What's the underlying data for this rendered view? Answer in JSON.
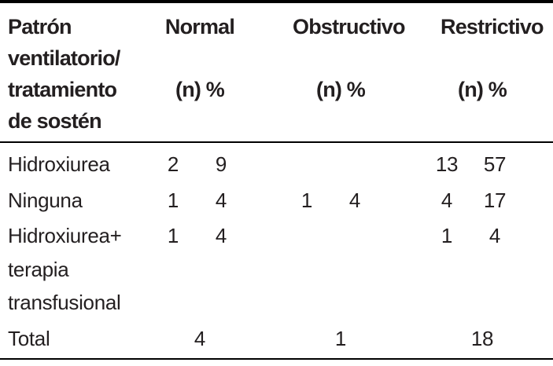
{
  "colors": {
    "text": "#231f20",
    "rule": "#000000",
    "background": "#ffffff"
  },
  "table": {
    "header": {
      "row_label_lines": [
        "Patrón",
        "ventilatorio/",
        "tratamiento",
        "de sostén"
      ],
      "groups": [
        {
          "name": "Normal",
          "sub": "(n) %"
        },
        {
          "name": "Obstructivo",
          "sub": "(n) %"
        },
        {
          "name": "Restrictivo",
          "sub": "(n) %"
        }
      ]
    },
    "rows": [
      {
        "label_lines": [
          "Hidroxiurea"
        ],
        "normal": {
          "n": "2",
          "pct": "9"
        },
        "obstructivo": {
          "n": "",
          "pct": ""
        },
        "restrictivo": {
          "n": "13",
          "pct": "57"
        }
      },
      {
        "label_lines": [
          "Ninguna"
        ],
        "normal": {
          "n": "1",
          "pct": "4"
        },
        "obstructivo": {
          "n": "1",
          "pct": "4"
        },
        "restrictivo": {
          "n": "4",
          "pct": "17"
        }
      },
      {
        "label_lines": [
          "Hidroxiurea+",
          "terapia",
          "transfusional"
        ],
        "normal": {
          "n": "1",
          "pct": "4"
        },
        "obstructivo": {
          "n": "",
          "pct": ""
        },
        "restrictivo": {
          "n": "1",
          "pct": "4"
        }
      }
    ],
    "total_row": {
      "label": "Total",
      "normal": "4",
      "obstructivo": "1",
      "restrictivo": "18"
    }
  },
  "chart_data": {
    "type": "table",
    "title": "Patrón ventilatorio/tratamiento de sostén",
    "columns": [
      "Normal (n)",
      "Normal %",
      "Obstructivo (n)",
      "Obstructivo %",
      "Restrictivo (n)",
      "Restrictivo %"
    ],
    "rows": [
      {
        "label": "Hidroxiurea",
        "values": [
          2,
          9,
          null,
          null,
          13,
          57
        ]
      },
      {
        "label": "Ninguna",
        "values": [
          1,
          4,
          1,
          4,
          4,
          17
        ]
      },
      {
        "label": "Hidroxiurea+ terapia transfusional",
        "values": [
          1,
          4,
          null,
          null,
          1,
          4
        ]
      },
      {
        "label": "Total",
        "values": [
          4,
          null,
          1,
          null,
          18,
          null
        ]
      }
    ]
  }
}
